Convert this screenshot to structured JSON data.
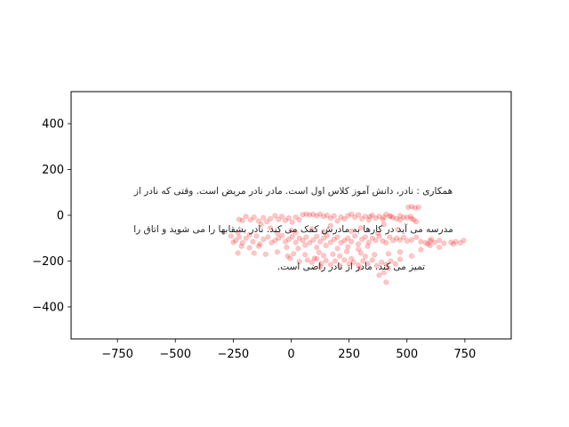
{
  "chart_data": {
    "type": "scatter",
    "title": "",
    "xlabel": "",
    "ylabel": "",
    "xlim": [
      -950,
      950
    ],
    "ylim": [
      -540,
      540
    ],
    "xticks": [
      -750,
      -500,
      -250,
      0,
      250,
      500,
      750
    ],
    "yticks": [
      -400,
      -200,
      0,
      200,
      400
    ],
    "xtick_labels": [
      "−750",
      "−500",
      "−250",
      "0",
      "250",
      "500",
      "750"
    ],
    "ytick_labels": [
      "−400",
      "−200",
      "0",
      "200",
      "400"
    ],
    "grid": false,
    "marker_color": "#ff0000",
    "marker_opacity": 0.22,
    "annotations": [
      {
        "text": "همکاری : نادر، دانش آموز کلاس اول است. مادر نادر مریض است. وقتی که نادر از",
        "x": 0,
        "y": 110
      },
      {
        "text": "مدرسه می آید در کارها به مادرش کمک می کند. نادر بشقابها را می شوید و اتاق را",
        "x": 0,
        "y": -57
      },
      {
        "text": "تمیز می کند. مادر از نادر راضی است.",
        "x": 0,
        "y": -223
      }
    ],
    "points": [
      [
        -225,
        -18
      ],
      [
        -210,
        -22
      ],
      [
        -195,
        -5
      ],
      [
        -175,
        -20
      ],
      [
        -160,
        -8
      ],
      [
        -140,
        -25
      ],
      [
        -120,
        -10
      ],
      [
        -105,
        -28
      ],
      [
        -90,
        -15
      ],
      [
        -70,
        -2
      ],
      [
        -55,
        -18
      ],
      [
        -40,
        -5
      ],
      [
        -25,
        -22
      ],
      [
        -10,
        -12
      ],
      [
        5,
        -30
      ],
      [
        20,
        -8
      ],
      [
        35,
        -20
      ],
      [
        50,
        3
      ],
      [
        65,
        5
      ],
      [
        80,
        2
      ],
      [
        95,
        4
      ],
      [
        110,
        -2
      ],
      [
        125,
        5
      ],
      [
        140,
        -5
      ],
      [
        155,
        0
      ],
      [
        170,
        -12
      ],
      [
        185,
        -3
      ],
      [
        200,
        -25
      ],
      [
        215,
        -8
      ],
      [
        230,
        -15
      ],
      [
        245,
        -2
      ],
      [
        260,
        5
      ],
      [
        275,
        -8
      ],
      [
        290,
        2
      ],
      [
        305,
        -15
      ],
      [
        320,
        -5
      ],
      [
        335,
        -20
      ],
      [
        350,
        0
      ],
      [
        365,
        -12
      ],
      [
        380,
        -5
      ],
      [
        395,
        -18
      ],
      [
        410,
        4
      ],
      [
        425,
        -3
      ],
      [
        440,
        -10
      ],
      [
        455,
        -15
      ],
      [
        470,
        -2
      ],
      [
        485,
        -8
      ],
      [
        500,
        -10
      ],
      [
        515,
        -5
      ],
      [
        530,
        -20
      ],
      [
        505,
        35
      ],
      [
        520,
        38
      ],
      [
        535,
        32
      ],
      [
        550,
        35
      ],
      [
        540,
        -28
      ],
      [
        520,
        -15
      ],
      [
        470,
        -20
      ],
      [
        430,
        -5
      ],
      [
        400,
        -8
      ],
      [
        340,
        -6
      ],
      [
        -240,
        -110
      ],
      [
        -225,
        -95
      ],
      [
        -210,
        -120
      ],
      [
        -195,
        -100
      ],
      [
        -180,
        -85
      ],
      [
        -165,
        -115
      ],
      [
        -150,
        -90
      ],
      [
        -135,
        -125
      ],
      [
        -120,
        -105
      ],
      [
        -100,
        -95
      ],
      [
        -85,
        -120
      ],
      [
        -70,
        -110
      ],
      [
        -55,
        -100
      ],
      [
        -40,
        -88
      ],
      [
        -25,
        -115
      ],
      [
        -10,
        -105
      ],
      [
        5,
        -92
      ],
      [
        20,
        -118
      ],
      [
        35,
        -100
      ],
      [
        50,
        -110
      ],
      [
        65,
        -95
      ],
      [
        80,
        -120
      ],
      [
        95,
        -108
      ],
      [
        110,
        -92
      ],
      [
        125,
        -115
      ],
      [
        140,
        -100
      ],
      [
        155,
        -88
      ],
      [
        170,
        -118
      ],
      [
        185,
        -105
      ],
      [
        200,
        -95
      ],
      [
        215,
        -120
      ],
      [
        230,
        -110
      ],
      [
        245,
        -100
      ],
      [
        260,
        -115
      ],
      [
        275,
        -90
      ],
      [
        290,
        -125
      ],
      [
        305,
        -105
      ],
      [
        320,
        -95
      ],
      [
        335,
        -118
      ],
      [
        350,
        -100
      ],
      [
        365,
        -110
      ],
      [
        380,
        -92
      ],
      [
        395,
        -112
      ],
      [
        410,
        -120
      ],
      [
        425,
        -95
      ],
      [
        440,
        -110
      ],
      [
        455,
        -100
      ],
      [
        470,
        -108
      ],
      [
        485,
        -96
      ],
      [
        500,
        -112
      ],
      [
        520,
        -108
      ],
      [
        540,
        -96
      ],
      [
        560,
        -115
      ],
      [
        580,
        -120
      ],
      [
        600,
        -112
      ],
      [
        620,
        -118
      ],
      [
        640,
        -110
      ],
      [
        660,
        -122
      ],
      [
        690,
        -118
      ],
      [
        710,
        -115
      ],
      [
        730,
        -120
      ],
      [
        745,
        -110
      ],
      [
        590,
        -125
      ],
      [
        605,
        -105
      ],
      [
        700,
        -125
      ],
      [
        -215,
        -135
      ],
      [
        -180,
        -142
      ],
      [
        -140,
        -135
      ],
      [
        -20,
        -140
      ],
      [
        30,
        -145
      ],
      [
        60,
        -130
      ],
      [
        110,
        -140
      ],
      [
        150,
        -132
      ],
      [
        200,
        -145
      ],
      [
        245,
        -138
      ],
      [
        290,
        -148
      ],
      [
        330,
        -135
      ],
      [
        -260,
        -90
      ],
      [
        -250,
        -118
      ],
      [
        -230,
        -75
      ],
      [
        -60,
        -78
      ],
      [
        20,
        -75
      ],
      [
        140,
        -72
      ],
      [
        260,
        -70
      ],
      [
        375,
        -78
      ],
      [
        70,
        -195
      ],
      [
        90,
        -205
      ],
      [
        110,
        -190
      ],
      [
        130,
        -210
      ],
      [
        150,
        -198
      ],
      [
        170,
        -215
      ],
      [
        190,
        -200
      ],
      [
        210,
        -220
      ],
      [
        230,
        -195
      ],
      [
        250,
        -212
      ],
      [
        270,
        -205
      ],
      [
        290,
        -218
      ],
      [
        310,
        -200
      ],
      [
        330,
        -210
      ],
      [
        350,
        -195
      ],
      [
        370,
        -220
      ],
      [
        390,
        -205
      ],
      [
        410,
        -215
      ],
      [
        430,
        -200
      ],
      [
        450,
        -212
      ],
      [
        100,
        -188
      ],
      [
        260,
        -190
      ],
      [
        420,
        -232
      ],
      [
        470,
        -192
      ],
      [
        -5,
        -188
      ],
      [
        35,
        -202
      ],
      [
        400,
        -250
      ],
      [
        380,
        -262
      ],
      [
        410,
        -292
      ],
      [
        125,
        -225
      ],
      [
        295,
        -232
      ],
      [
        -160,
        -165
      ],
      [
        -110,
        -170
      ],
      [
        -60,
        -160
      ],
      [
        10,
        -168
      ],
      [
        60,
        -172
      ],
      [
        120,
        -162
      ],
      [
        180,
        -170
      ],
      [
        240,
        -158
      ],
      [
        300,
        -165
      ],
      [
        360,
        -172
      ],
      [
        420,
        -168
      ],
      [
        470,
        -160
      ],
      [
        520,
        -178
      ],
      [
        -230,
        -165
      ],
      [
        -15,
        -178
      ],
      [
        140,
        -176
      ],
      [
        210,
        -178
      ],
      [
        320,
        -180
      ],
      [
        560,
        -150
      ],
      [
        600,
        -132
      ],
      [
        640,
        -140
      ],
      [
        90,
        -60
      ],
      [
        -90,
        -55
      ],
      [
        0,
        -65
      ],
      [
        300,
        -55
      ],
      [
        460,
        -62
      ],
      [
        -130,
        -40
      ],
      [
        170,
        -45
      ],
      [
        400,
        -40
      ]
    ]
  }
}
